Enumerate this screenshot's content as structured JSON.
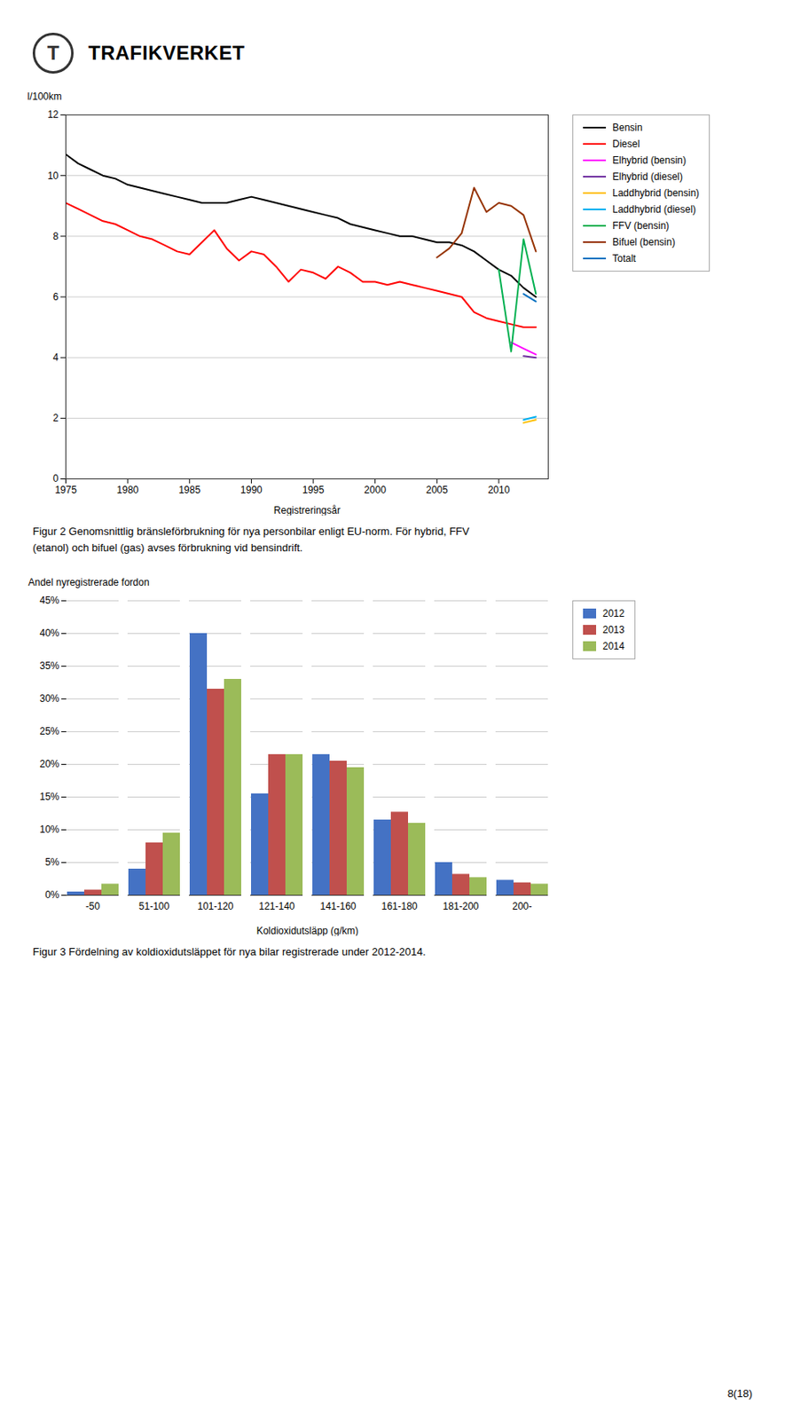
{
  "logo": {
    "symbol": "T",
    "text": "TRAFIKVERKET"
  },
  "page_number": "8(18)",
  "chart_data": [
    {
      "type": "line",
      "xlabel": "Registreringsår",
      "ylabel": "l/100km",
      "x": [
        1975,
        1976,
        1977,
        1978,
        1979,
        1980,
        1981,
        1982,
        1983,
        1984,
        1985,
        1986,
        1987,
        1988,
        1989,
        1990,
        1991,
        1992,
        1993,
        1994,
        1995,
        1996,
        1997,
        1998,
        1999,
        2000,
        2001,
        2002,
        2003,
        2004,
        2005,
        2006,
        2007,
        2008,
        2009,
        2010,
        2011,
        2012,
        2013
      ],
      "series": [
        {
          "name": "Bensin",
          "color": "#000000",
          "values": [
            10.7,
            10.4,
            10.2,
            10.0,
            9.9,
            9.7,
            9.6,
            9.5,
            9.4,
            9.3,
            9.2,
            9.1,
            9.1,
            9.1,
            9.2,
            9.3,
            9.2,
            9.1,
            9.0,
            8.9,
            8.8,
            8.7,
            8.6,
            8.4,
            8.3,
            8.2,
            8.1,
            8.0,
            8.0,
            7.9,
            7.8,
            7.8,
            7.7,
            7.5,
            7.2,
            6.9,
            6.7,
            6.3,
            6.0
          ]
        },
        {
          "name": "Diesel",
          "color": "#ff0000",
          "values": [
            9.1,
            8.9,
            8.7,
            8.5,
            8.4,
            8.2,
            8.0,
            7.9,
            7.7,
            7.5,
            7.4,
            7.8,
            8.2,
            7.6,
            7.2,
            7.5,
            7.4,
            7.0,
            6.5,
            6.9,
            6.8,
            6.6,
            7.0,
            6.8,
            6.5,
            6.5,
            6.4,
            6.5,
            6.4,
            6.3,
            6.2,
            6.1,
            6.0,
            5.5,
            5.3,
            5.2,
            5.1,
            5.0,
            5.0
          ]
        },
        {
          "name": "Elhybrid (bensin)",
          "color": "#ff00ff",
          "values": [
            null,
            null,
            null,
            null,
            null,
            null,
            null,
            null,
            null,
            null,
            null,
            null,
            null,
            null,
            null,
            null,
            null,
            null,
            null,
            null,
            null,
            null,
            null,
            null,
            null,
            null,
            null,
            null,
            null,
            null,
            null,
            null,
            null,
            null,
            null,
            null,
            4.5,
            4.3,
            4.1
          ]
        },
        {
          "name": "Elhybrid (diesel)",
          "color": "#7030a0",
          "values": [
            null,
            null,
            null,
            null,
            null,
            null,
            null,
            null,
            null,
            null,
            null,
            null,
            null,
            null,
            null,
            null,
            null,
            null,
            null,
            null,
            null,
            null,
            null,
            null,
            null,
            null,
            null,
            null,
            null,
            null,
            null,
            null,
            null,
            null,
            null,
            null,
            null,
            4.05,
            4.0
          ]
        },
        {
          "name": "Laddhybrid (bensin)",
          "color": "#ffc000",
          "values": [
            null,
            null,
            null,
            null,
            null,
            null,
            null,
            null,
            null,
            null,
            null,
            null,
            null,
            null,
            null,
            null,
            null,
            null,
            null,
            null,
            null,
            null,
            null,
            null,
            null,
            null,
            null,
            null,
            null,
            null,
            null,
            null,
            null,
            null,
            null,
            null,
            null,
            1.85,
            1.95
          ]
        },
        {
          "name": "Laddhybrid (diesel)",
          "color": "#00b0f0",
          "values": [
            null,
            null,
            null,
            null,
            null,
            null,
            null,
            null,
            null,
            null,
            null,
            null,
            null,
            null,
            null,
            null,
            null,
            null,
            null,
            null,
            null,
            null,
            null,
            null,
            null,
            null,
            null,
            null,
            null,
            null,
            null,
            null,
            null,
            null,
            null,
            null,
            null,
            1.95,
            2.05
          ]
        },
        {
          "name": "FFV (bensin)",
          "color": "#00b050",
          "values": [
            null,
            null,
            null,
            null,
            null,
            null,
            null,
            null,
            null,
            null,
            null,
            null,
            null,
            null,
            null,
            null,
            null,
            null,
            null,
            null,
            null,
            null,
            null,
            null,
            null,
            null,
            null,
            null,
            null,
            null,
            null,
            null,
            null,
            null,
            null,
            6.9,
            4.2,
            7.9,
            6.1
          ]
        },
        {
          "name": "Bifuel (bensin)",
          "color": "#963300",
          "values": [
            null,
            null,
            null,
            null,
            null,
            null,
            null,
            null,
            null,
            null,
            null,
            null,
            null,
            null,
            null,
            null,
            null,
            null,
            null,
            null,
            null,
            null,
            null,
            null,
            null,
            null,
            null,
            null,
            null,
            null,
            7.3,
            7.6,
            8.1,
            9.6,
            8.8,
            9.1,
            9.0,
            8.7,
            7.5
          ]
        },
        {
          "name": "Totalt",
          "color": "#0070c0",
          "values": [
            null,
            null,
            null,
            null,
            null,
            null,
            null,
            null,
            null,
            null,
            null,
            null,
            null,
            null,
            null,
            null,
            null,
            null,
            null,
            null,
            null,
            null,
            null,
            null,
            null,
            null,
            null,
            null,
            null,
            null,
            null,
            null,
            null,
            null,
            null,
            null,
            null,
            6.1,
            5.85
          ]
        }
      ],
      "xlim": [
        1975,
        2014
      ],
      "xticks": [
        1975,
        1980,
        1985,
        1990,
        1995,
        2000,
        2005,
        2010
      ],
      "ylim": [
        0,
        12
      ],
      "yticks": [
        0,
        2,
        4,
        6,
        8,
        10,
        12
      ],
      "grid": true,
      "legend": "right",
      "caption": [
        "Figur 2 Genomsnittlig bränsleförbrukning för nya personbilar enligt EU-norm. För hybrid, FFV",
        "(etanol) och bifuel (gas) avses förbrukning vid bensindrift."
      ]
    },
    {
      "type": "bar",
      "xlabel": "Koldioxidutsläpp (g/km)",
      "ylabel": "Andel nyregistrerade fordon",
      "categories": [
        "-50",
        "51-100",
        "101-120",
        "121-140",
        "141-160",
        "161-180",
        "181-200",
        "200-"
      ],
      "series": [
        {
          "name": "2012",
          "color": "#4472c4",
          "values": [
            0.5,
            4.0,
            40.0,
            15.5,
            21.5,
            11.5,
            5.0,
            2.3
          ]
        },
        {
          "name": "2013",
          "color": "#c0504d",
          "values": [
            0.8,
            8.0,
            31.5,
            21.5,
            20.5,
            12.7,
            3.2,
            1.9
          ]
        },
        {
          "name": "2014",
          "color": "#9bbb59",
          "values": [
            1.7,
            9.5,
            33.0,
            21.5,
            19.5,
            11.0,
            2.7,
            1.7
          ]
        }
      ],
      "ylim": [
        0,
        45
      ],
      "yticks": [
        {
          "value": 0,
          "label": "0%"
        },
        {
          "value": 5,
          "label": "5%"
        },
        {
          "value": 10,
          "label": "10%"
        },
        {
          "value": 15,
          "label": "15%"
        },
        {
          "value": 20,
          "label": "20%"
        },
        {
          "value": 25,
          "label": "25%"
        },
        {
          "value": 30,
          "label": "30%"
        },
        {
          "value": 35,
          "label": "35%"
        },
        {
          "value": 40,
          "label": "40%"
        },
        {
          "value": 45,
          "label": "45%"
        }
      ],
      "grid": true,
      "legend": "right",
      "caption": [
        "Figur 3 Fördelning av koldioxidutsläppet för nya bilar registrerade under 2012-2014."
      ]
    }
  ]
}
